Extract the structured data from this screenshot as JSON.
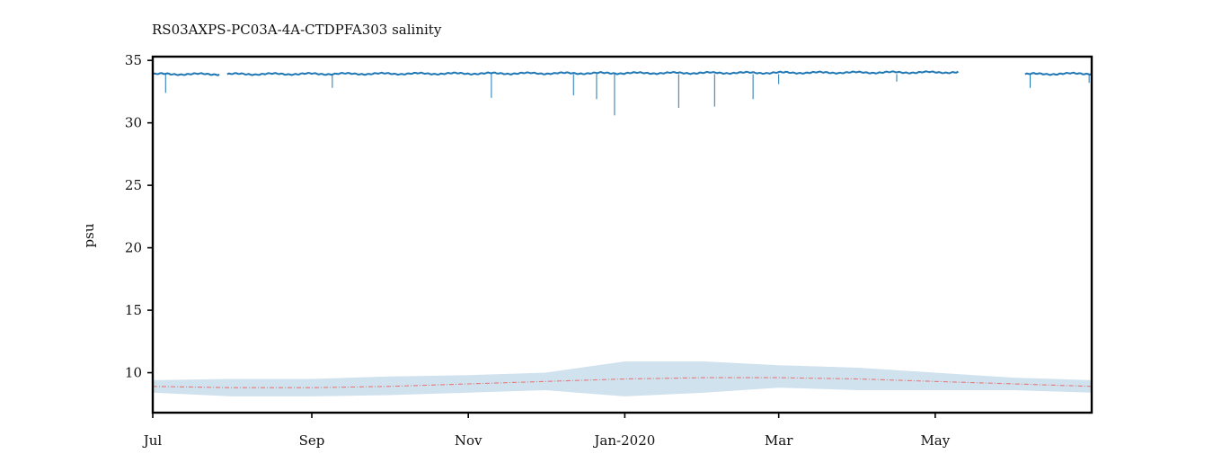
{
  "chart_data": {
    "type": "line",
    "title": "RS03AXPS-PC03A-4A-CTDPFA303 salinity",
    "xlabel": "",
    "ylabel": "psu",
    "xlim": [
      "2019-07-01",
      "2020-07-01"
    ],
    "ylim": [
      6.8,
      35.3
    ],
    "yticks": [
      10,
      15,
      20,
      25,
      30,
      35
    ],
    "xticks": [
      {
        "date": "2019-07-01",
        "label": "Jul"
      },
      {
        "date": "2019-09-01",
        "label": "Sep"
      },
      {
        "date": "2019-11-01",
        "label": "Nov"
      },
      {
        "date": "2020-01-01",
        "label": "Jan-2020"
      },
      {
        "date": "2020-03-01",
        "label": "Mar"
      },
      {
        "date": "2020-05-01",
        "label": "May"
      }
    ],
    "grid": false,
    "legend": "none",
    "colors": {
      "salinity": "#1f77b4",
      "climatology_mean": "#e07b7b",
      "climatology_band": "#b9d3e6"
    },
    "series": [
      {
        "key": "salinity",
        "style": "dense-line",
        "segments": [
          {
            "x": [
              "2019-07-01",
              "2019-07-27"
            ],
            "y": [
              33.9,
              33.9
            ]
          },
          {
            "x": [
              "2019-07-30",
              "2020-05-10"
            ],
            "y": [
              33.9,
              34.05
            ]
          },
          {
            "x": [
              "2020-06-05",
              "2020-07-01"
            ],
            "y": [
              33.9,
              33.95
            ]
          }
        ],
        "spikes": [
          {
            "x": "2019-07-06",
            "y": 32.4
          },
          {
            "x": "2019-09-09",
            "y": 32.8
          },
          {
            "x": "2019-11-10",
            "y": 32.0
          },
          {
            "x": "2019-12-12",
            "y": 32.2
          },
          {
            "x": "2019-12-21",
            "y": 31.9
          },
          {
            "x": "2019-12-28",
            "y": 30.6
          },
          {
            "x": "2020-01-22",
            "y": 31.2
          },
          {
            "x": "2020-02-05",
            "y": 31.3
          },
          {
            "x": "2020-02-20",
            "y": 31.9
          },
          {
            "x": "2020-03-01",
            "y": 33.1
          },
          {
            "x": "2020-04-16",
            "y": 33.3
          },
          {
            "x": "2020-06-07",
            "y": 32.8
          },
          {
            "x": "2020-06-30",
            "y": 33.2
          }
        ]
      },
      {
        "key": "climatology_mean",
        "style": "dash-dot",
        "x": [
          "2019-07-01",
          "2019-08-01",
          "2019-09-01",
          "2019-10-01",
          "2019-11-01",
          "2019-12-01",
          "2020-01-01",
          "2020-02-01",
          "2020-03-01",
          "2020-04-01",
          "2020-05-01",
          "2020-06-01",
          "2020-07-01"
        ],
        "y": [
          8.9,
          8.8,
          8.8,
          8.9,
          9.1,
          9.3,
          9.5,
          9.6,
          9.6,
          9.5,
          9.3,
          9.1,
          8.9
        ]
      },
      {
        "key": "climatology_band",
        "style": "band",
        "x": [
          "2019-07-01",
          "2019-08-01",
          "2019-09-01",
          "2019-10-01",
          "2019-11-01",
          "2019-12-01",
          "2020-01-01",
          "2020-02-01",
          "2020-03-01",
          "2020-04-01",
          "2020-05-01",
          "2020-06-01",
          "2020-07-01"
        ],
        "upper": [
          9.4,
          9.5,
          9.5,
          9.7,
          9.8,
          10.0,
          10.9,
          10.9,
          10.6,
          10.4,
          10.0,
          9.6,
          9.4
        ],
        "lower": [
          8.4,
          8.1,
          8.1,
          8.2,
          8.4,
          8.6,
          8.1,
          8.4,
          8.8,
          8.6,
          8.6,
          8.6,
          8.4
        ]
      }
    ]
  }
}
